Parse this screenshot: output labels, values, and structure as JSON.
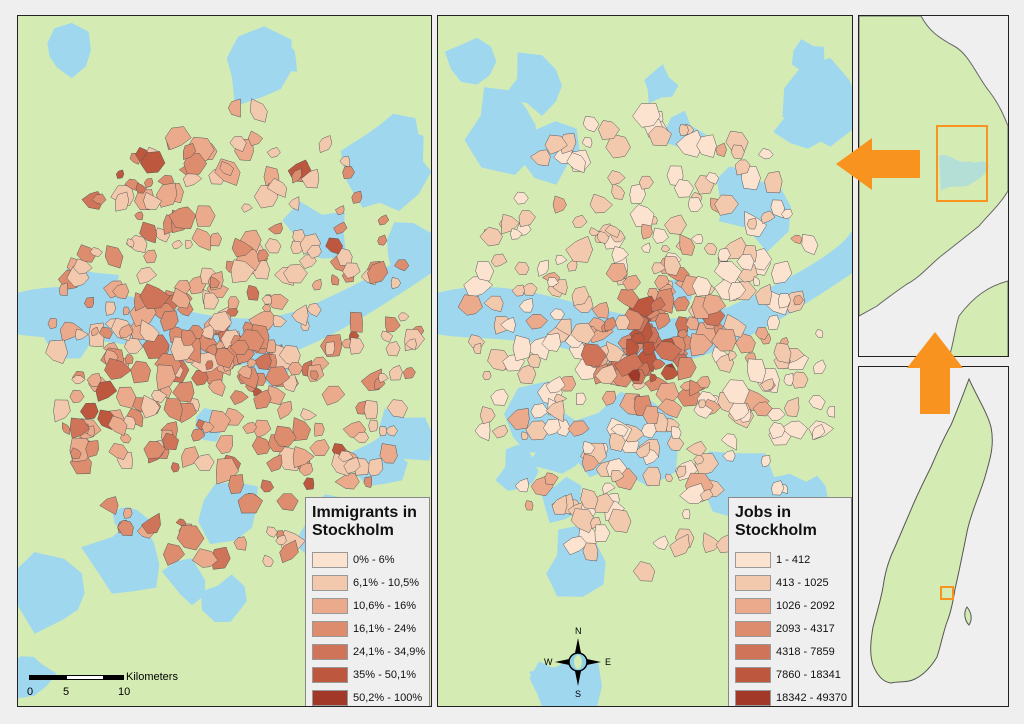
{
  "colors": {
    "land": "#d4ecb4",
    "water": "#9fd7ef",
    "border": "#222222",
    "arrow": "#f7931e",
    "outline": "#555555",
    "class_colors": [
      "#fbe3d0",
      "#f3c9ae",
      "#eaaa8b",
      "#dd8c6e",
      "#cf7458",
      "#bd573e",
      "#a13828"
    ]
  },
  "map_immigrants": {
    "legend": {
      "title_line1": "Immigrants in",
      "title_line2": "Stockholm",
      "classes": [
        "0% - 6%",
        "6,1% - 10,5%",
        "10,6% - 16%",
        "16,1% - 24%",
        "24,1% - 34,9%",
        "35% - 50,1%",
        "50,2% - 100%"
      ]
    },
    "scalebar": {
      "unit": "Kilometers",
      "ticks": [
        "0",
        "5",
        "10"
      ]
    }
  },
  "map_jobs": {
    "legend": {
      "title_line1": "Jobs in",
      "title_line2": "Stockholm",
      "classes": [
        "1 - 412",
        "413 - 1025",
        "1026 - 2092",
        "2093 - 4317",
        "4318 - 7859",
        "7860 - 18341",
        "18342 - 49370"
      ]
    },
    "compass": {
      "north": "N",
      "south": "S",
      "east": "E",
      "west": "W"
    }
  },
  "insets": {
    "top": {
      "description_icon": "coast-region-locator"
    },
    "bottom": {
      "description_icon": "sweden-locator"
    }
  }
}
